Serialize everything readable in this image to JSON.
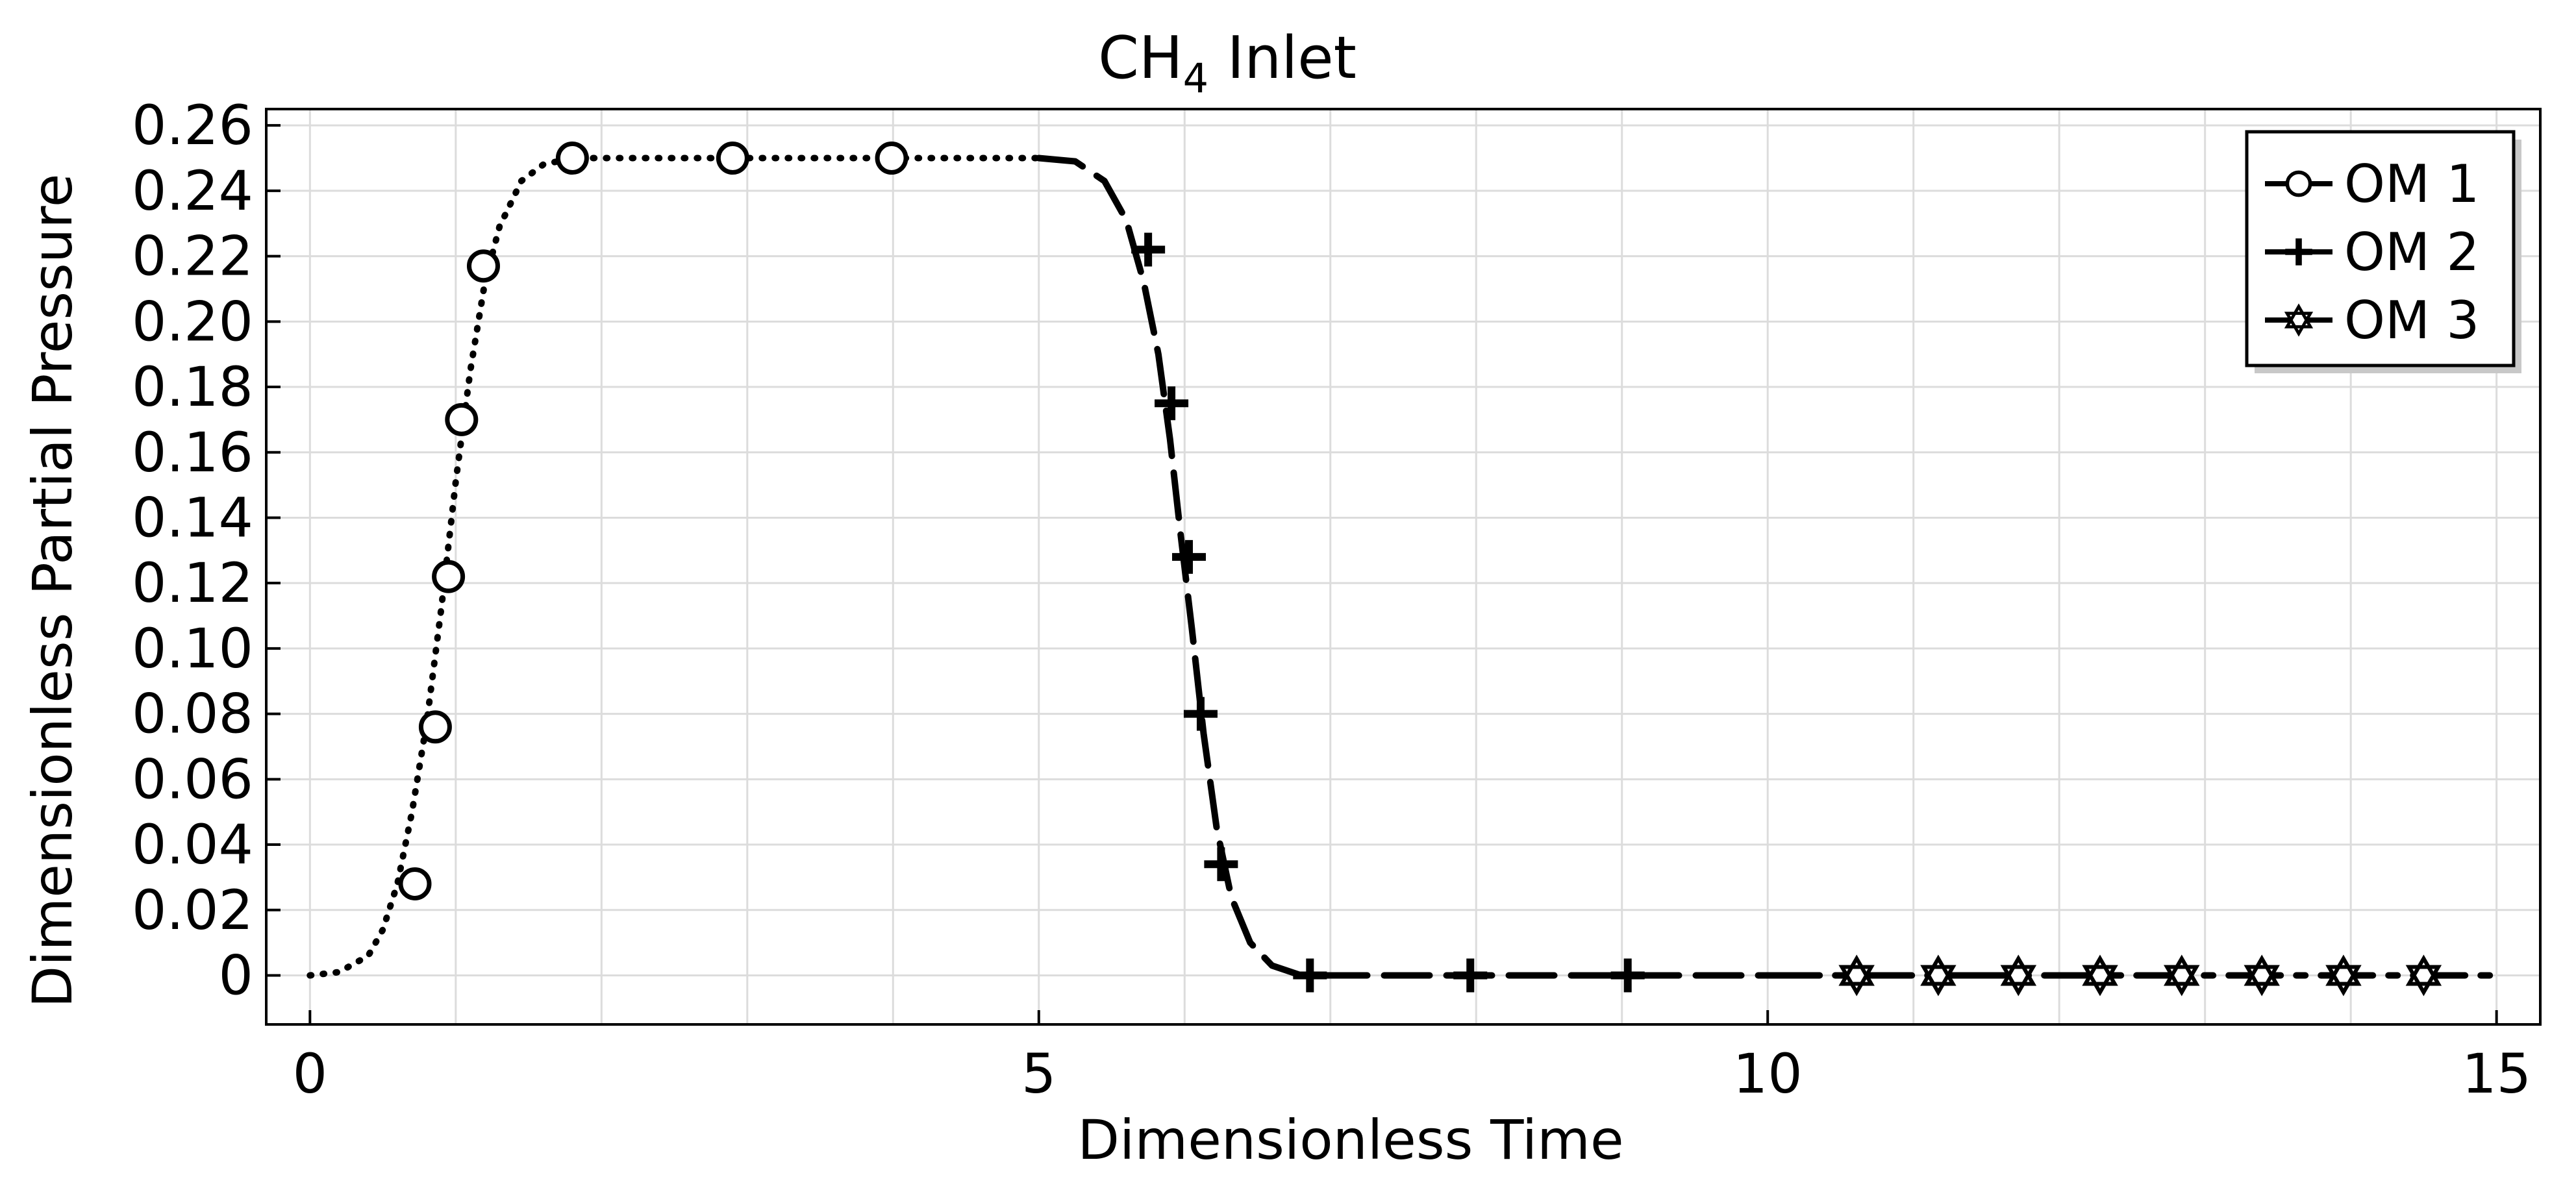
{
  "chart_data": {
    "type": "line",
    "title": "CH",
    "title_subscript": "4",
    "title_suffix": " Inlet",
    "xlabel": "Dimensionless Time",
    "ylabel": "Dimensionless Partial Pressure",
    "xlim": [
      -0.3,
      15.3
    ],
    "ylim": [
      -0.015,
      0.265
    ],
    "xticks": [
      0,
      5,
      10,
      15
    ],
    "xtick_labels": [
      "0",
      "5",
      "10",
      "15"
    ],
    "yticks": [
      0,
      0.02,
      0.04,
      0.06,
      0.08,
      0.1,
      0.12,
      0.14,
      0.16,
      0.18,
      0.2,
      0.22,
      0.24,
      0.26
    ],
    "ytick_labels": [
      "0",
      "0.02",
      "0.04",
      "0.06",
      "0.08",
      "0.10",
      "0.12",
      "0.14",
      "0.16",
      "0.18",
      "0.20",
      "0.22",
      "0.24",
      "0.26"
    ],
    "xgrid_minor": [
      0,
      1,
      2,
      3,
      4,
      5,
      6,
      7,
      8,
      9,
      10,
      11,
      12,
      13,
      14,
      15
    ],
    "grid": true,
    "legend_position": "top-right",
    "series": [
      {
        "name": "OM 1",
        "line_style": "dotted",
        "marker": "circle",
        "x": [
          0.0,
          0.2,
          0.4,
          0.5,
          0.6,
          0.7,
          0.8,
          0.9,
          1.0,
          1.1,
          1.2,
          1.3,
          1.45,
          1.6,
          1.8,
          2.0,
          2.5,
          3.0,
          3.5,
          4.0,
          4.5,
          5.0
        ],
        "y": [
          0.0,
          0.001,
          0.006,
          0.014,
          0.028,
          0.05,
          0.077,
          0.112,
          0.151,
          0.185,
          0.212,
          0.229,
          0.243,
          0.248,
          0.25,
          0.25,
          0.25,
          0.25,
          0.25,
          0.25,
          0.25,
          0.25
        ],
        "markers_x": [
          0.72,
          0.86,
          0.95,
          1.04,
          1.19,
          1.8,
          2.9,
          3.99
        ],
        "markers_y": [
          0.028,
          0.076,
          0.122,
          0.17,
          0.217,
          0.25,
          0.25,
          0.25
        ]
      },
      {
        "name": "OM 2",
        "line_style": "dashed",
        "marker": "plus",
        "x": [
          5.0,
          5.25,
          5.45,
          5.6,
          5.72,
          5.82,
          5.9,
          5.97,
          6.05,
          6.13,
          6.22,
          6.32,
          6.45,
          6.6,
          6.8,
          7.2,
          8.0,
          9.0,
          10.0
        ],
        "y": [
          0.25,
          0.249,
          0.243,
          0.231,
          0.212,
          0.19,
          0.164,
          0.136,
          0.106,
          0.074,
          0.045,
          0.024,
          0.01,
          0.003,
          0.0,
          0.0,
          0.0,
          0.0,
          0.0
        ],
        "markers_x": [
          5.75,
          5.91,
          6.03,
          6.11,
          6.25,
          6.86,
          7.96,
          9.04
        ],
        "markers_y": [
          0.222,
          0.175,
          0.128,
          0.08,
          0.034,
          0.0,
          0.0,
          0.0
        ]
      },
      {
        "name": "OM 3",
        "line_style": "dashdot",
        "marker": "star",
        "x": [
          10.0,
          10.5,
          11.0,
          11.5,
          12.0,
          12.5,
          13.0,
          13.5,
          14.0,
          14.5,
          15.0
        ],
        "y": [
          0.0,
          0.0,
          0.0,
          0.0,
          0.0,
          0.0,
          0.0,
          0.0,
          0.0,
          0.0,
          0.0
        ],
        "markers_x": [
          10.61,
          11.17,
          11.72,
          12.28,
          12.84,
          13.39,
          13.95,
          14.5
        ],
        "markers_y": [
          0.0,
          0.0,
          0.0,
          0.0,
          0.0,
          0.0,
          0.0,
          0.0
        ]
      }
    ]
  }
}
